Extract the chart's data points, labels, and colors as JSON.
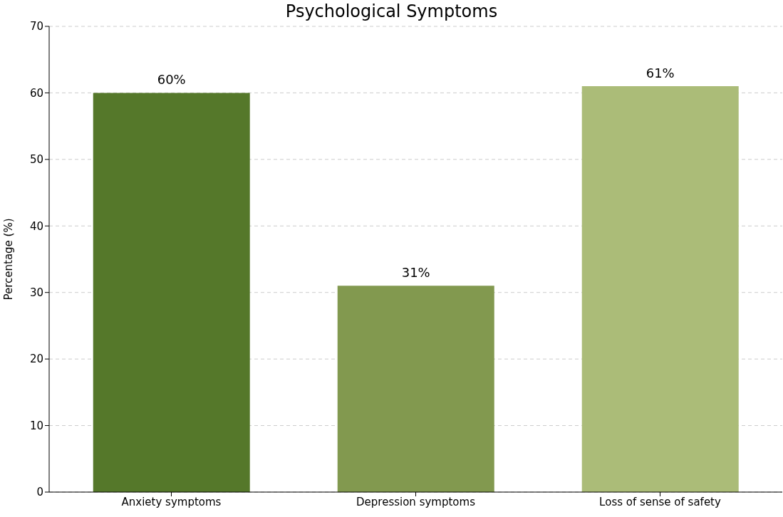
{
  "chart_data": {
    "type": "bar",
    "title": "Psychological Symptoms",
    "ylabel": "Percentage (%)",
    "categories": [
      "Anxiety symptoms",
      "Depression symptoms",
      "Loss of sense of safety"
    ],
    "values": [
      60,
      31,
      61
    ],
    "colors": [
      "#55782a",
      "#82994f",
      "#abbc78"
    ],
    "value_labels": [
      "60%",
      "31%",
      "61%"
    ],
    "ylim": [
      0,
      70
    ],
    "yticks": [
      0,
      10,
      20,
      30,
      40,
      50,
      60,
      70
    ],
    "grid": "y"
  }
}
